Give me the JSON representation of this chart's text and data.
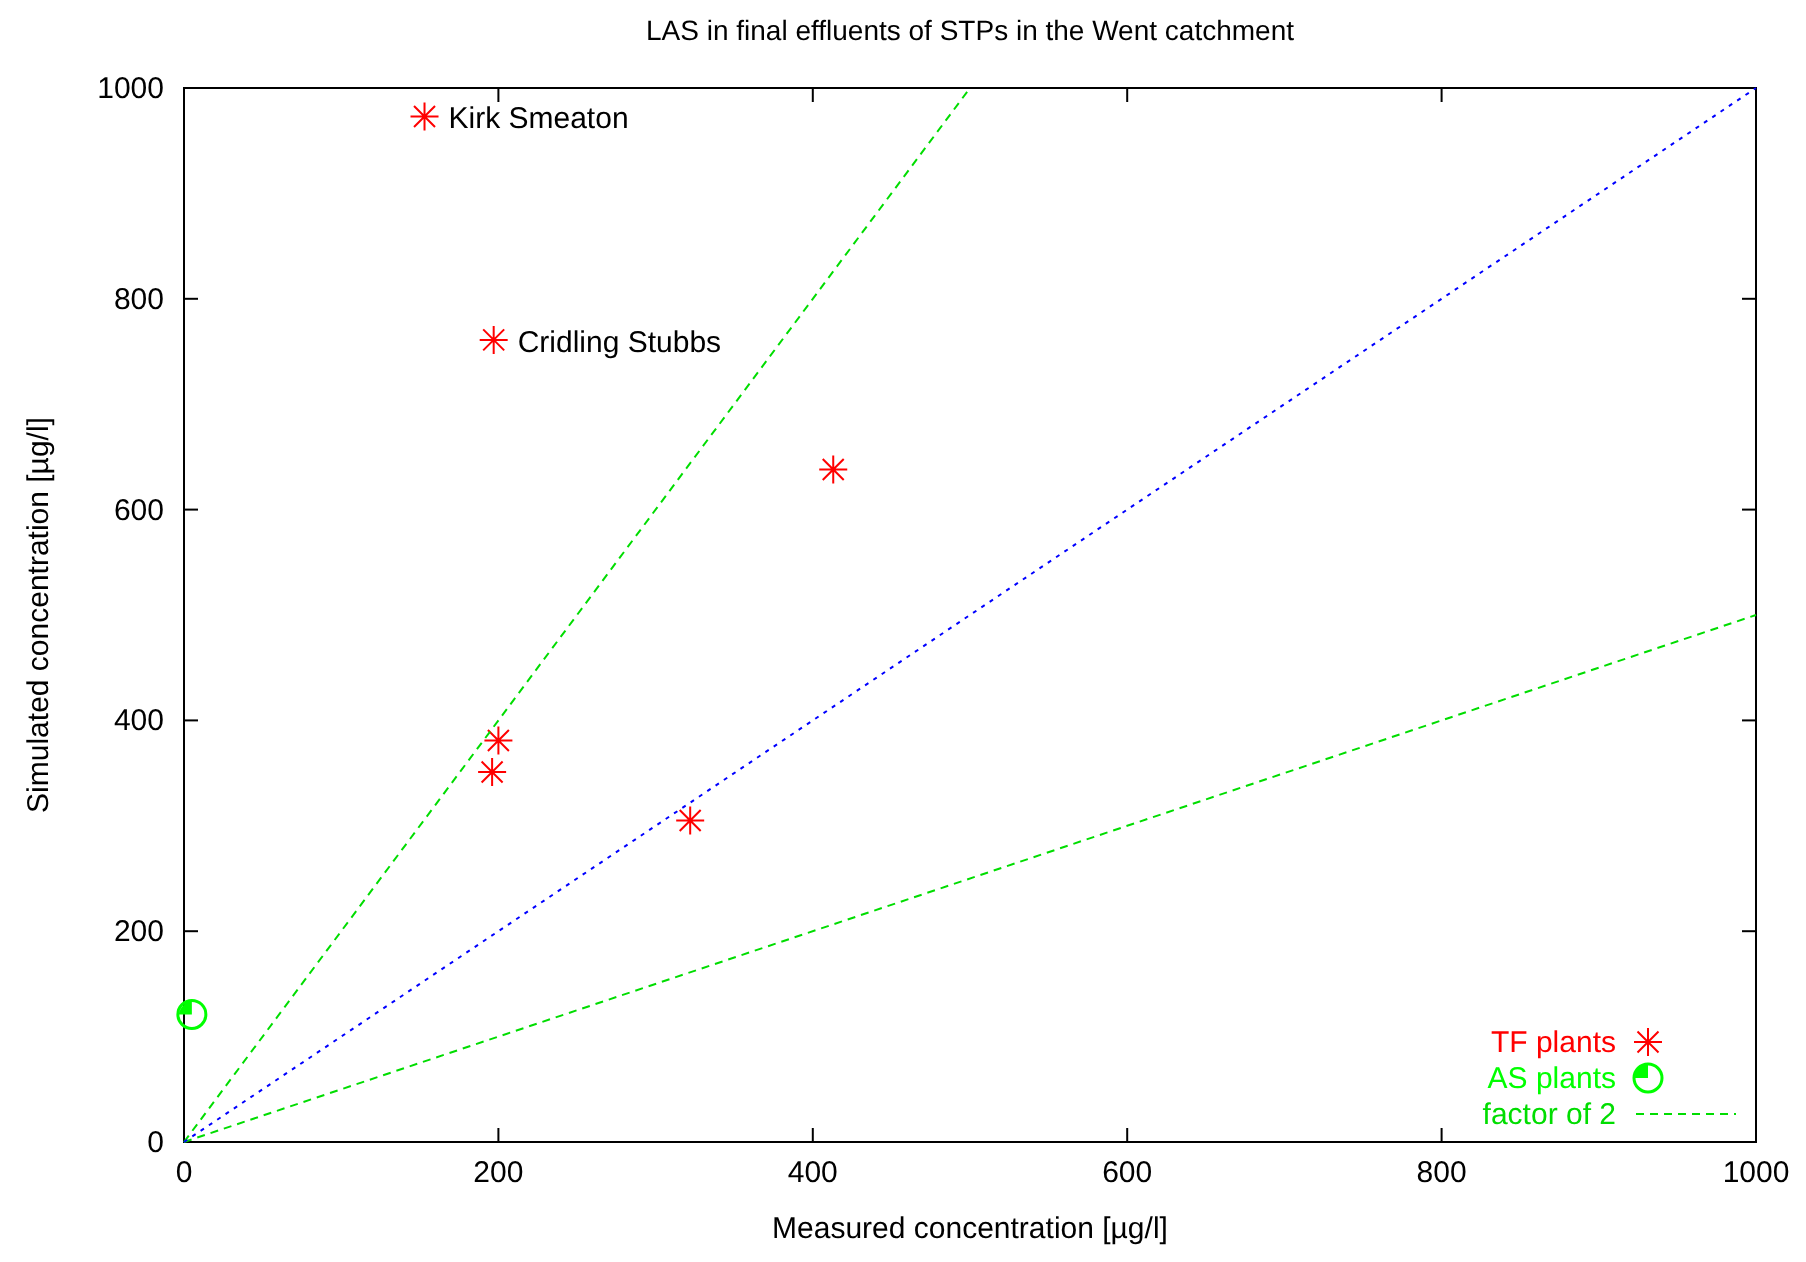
{
  "chart_data": {
    "type": "scatter",
    "title": "LAS in final effluents of STPs in the Went catchment",
    "xlabel": "Measured concentration [µg/l]",
    "ylabel": "Simulated concentration [µg/l]",
    "xlim": [
      0,
      1000
    ],
    "ylim": [
      0,
      1000
    ],
    "xticks": [
      0,
      200,
      400,
      600,
      800,
      1000
    ],
    "yticks": [
      0,
      200,
      400,
      600,
      800,
      1000
    ],
    "grid": false,
    "legend": "bottom right",
    "series": [
      {
        "name": "TF plants",
        "color": "#ff0000",
        "marker": "cross",
        "x": [
          153,
          197,
          413,
          200,
          196,
          322
        ],
        "values": [
          973,
          761,
          638,
          381,
          351,
          305
        ]
      },
      {
        "name": "AS plants",
        "color": "#00ff00",
        "marker": "circle",
        "x": [
          5
        ],
        "values": [
          121
        ]
      },
      {
        "name": "factor of 2",
        "type": "line",
        "color": "#00dd00",
        "line_style": "dashed",
        "x": [
          0,
          500
        ],
        "values": [
          0,
          1000
        ]
      },
      {
        "type": "line",
        "color": "#00dd00",
        "line_style": "dashed",
        "x": [
          0,
          1000
        ],
        "values": [
          0,
          500
        ]
      },
      {
        "type": "line",
        "color": "#0000ff",
        "line_style": "dotted",
        "x": [
          0,
          1000
        ],
        "values": [
          0,
          1000
        ]
      }
    ],
    "annotations": [
      {
        "text": "Kirk Smeaton",
        "x": 153,
        "y": 973
      },
      {
        "text": "Cridling Stubbs",
        "x": 197,
        "y": 761
      }
    ]
  }
}
